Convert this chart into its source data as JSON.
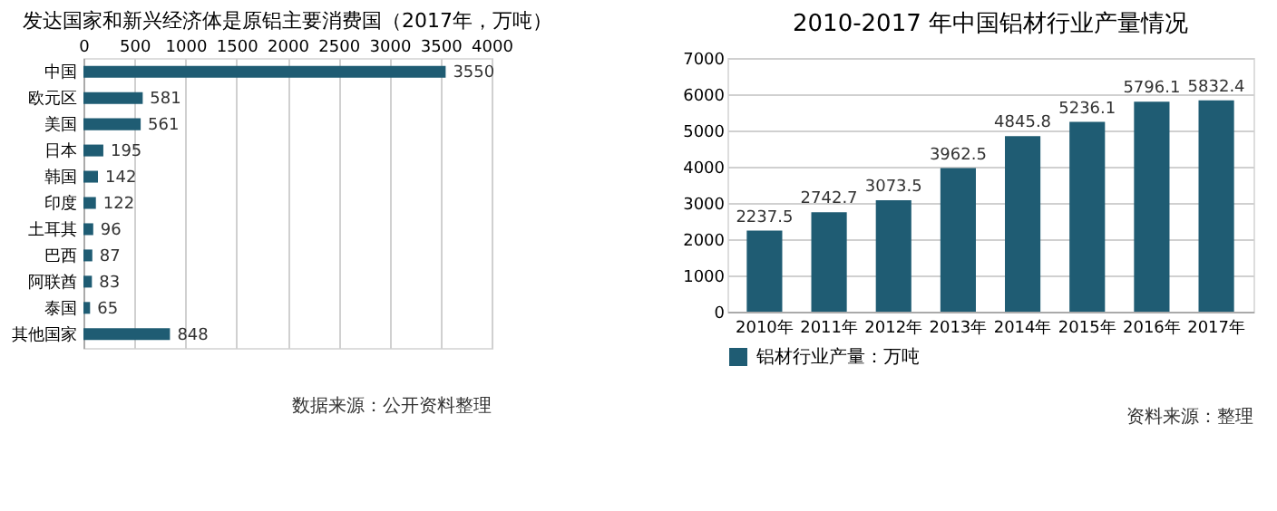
{
  "chart_data": [
    {
      "type": "bar",
      "orientation": "horizontal",
      "title": "发达国家和新兴经济体是原铝主要消费国（2017年，万吨）",
      "categories": [
        "中国",
        "欧元区",
        "美国",
        "日本",
        "韩国",
        "印度",
        "土耳其",
        "巴西",
        "阿联酋",
        "泰国",
        "其他国家"
      ],
      "values": [
        3550,
        581,
        561,
        195,
        142,
        122,
        96,
        87,
        83,
        65,
        848
      ],
      "color": "#1f5c73",
      "xlim": [
        0,
        4000
      ],
      "xticks": [
        0,
        500,
        1000,
        1500,
        2000,
        2500,
        3000,
        3500,
        4000
      ],
      "grid": "x",
      "data_labels": true,
      "annotations": [
        "数据来源：公开资料整理"
      ]
    },
    {
      "type": "bar",
      "title": "2010-2017 年中国铝材行业产量情况",
      "categories": [
        "2010年",
        "2011年",
        "2012年",
        "2013年",
        "2014年",
        "2015年",
        "2016年",
        "2017年"
      ],
      "series": [
        {
          "name": "铝材行业产量：万吨",
          "color": "#1f5c73",
          "values": [
            2237.5,
            2742.7,
            3073.5,
            3962.5,
            4845.8,
            5236.1,
            5796.1,
            5832.4
          ]
        }
      ],
      "ylim": [
        0,
        7000
      ],
      "yticks": [
        0,
        1000,
        2000,
        3000,
        4000,
        5000,
        6000,
        7000
      ],
      "grid": "y",
      "data_labels": true,
      "legend": "bottom",
      "annotations": [
        "资料来源：整理"
      ]
    }
  ]
}
